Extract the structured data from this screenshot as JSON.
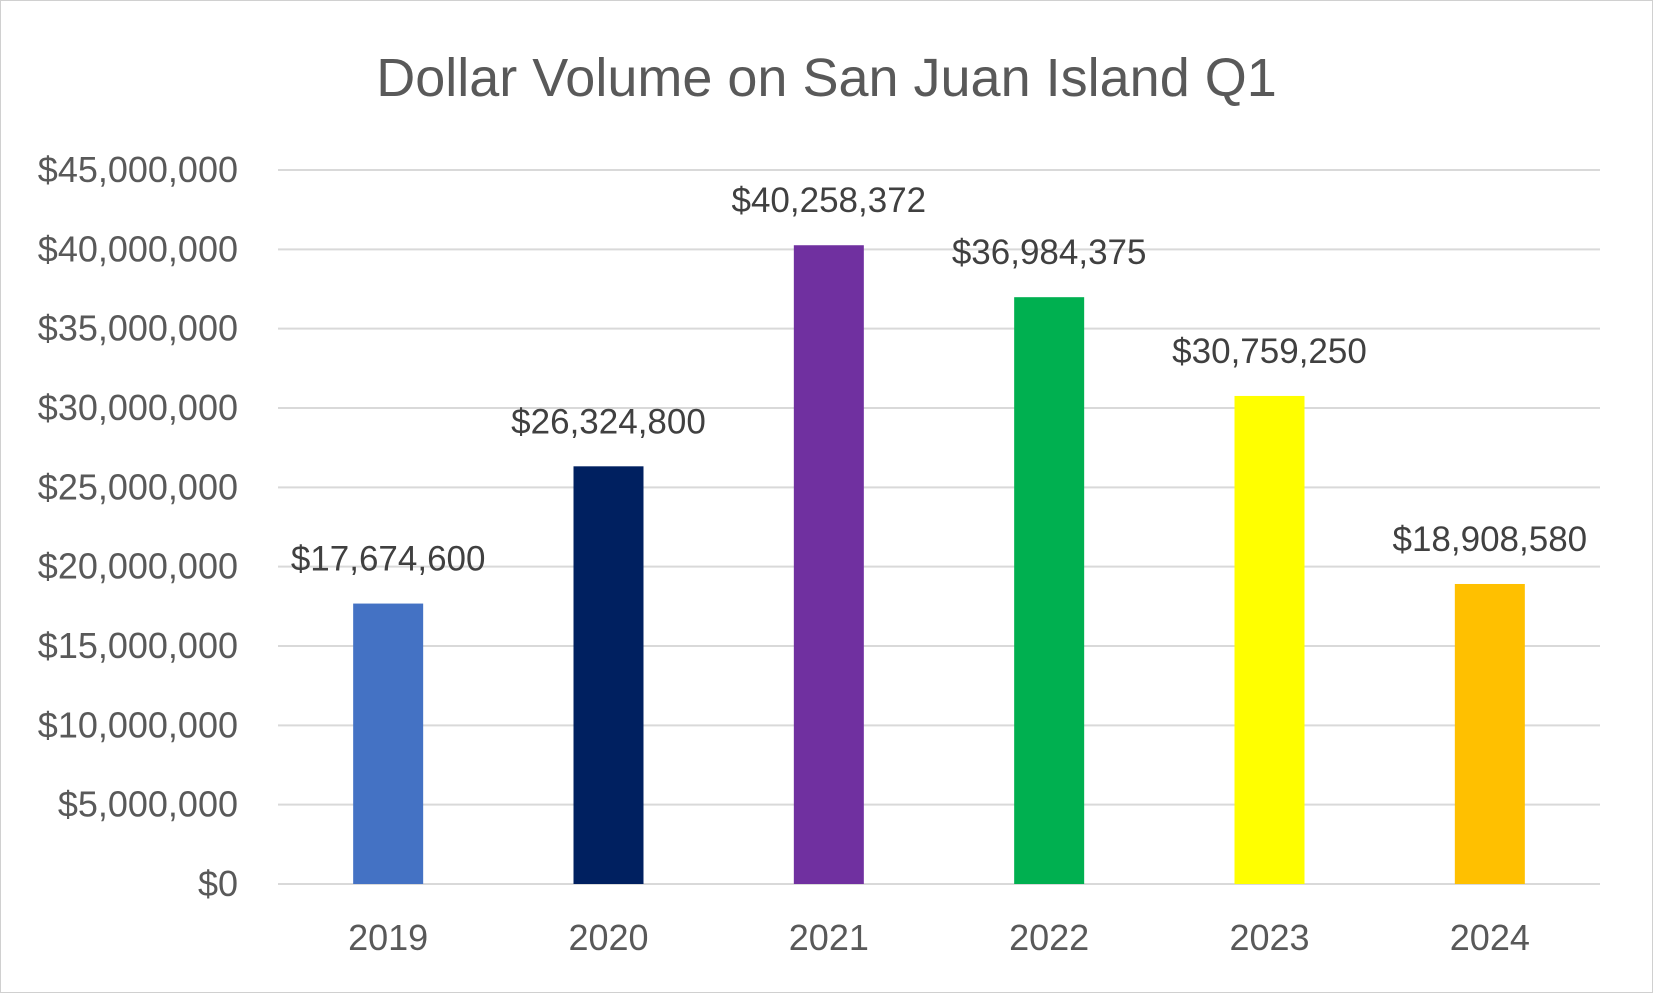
{
  "chart_data": {
    "type": "bar",
    "title": "Dollar Volume on San Juan Island Q1",
    "xlabel": "",
    "ylabel": "",
    "categories": [
      "2019",
      "2020",
      "2021",
      "2022",
      "2023",
      "2024"
    ],
    "values": [
      17674600,
      26324800,
      40258372,
      36984375,
      30759250,
      18908580
    ],
    "data_labels": [
      "$17,674,600",
      "$26,324,800",
      "$40,258,372",
      "$36,984,375",
      "$30,759,250",
      "$18,908,580"
    ],
    "bar_colors": [
      "#4472C4",
      "#002060",
      "#7030A0",
      "#00B050",
      "#FFFF00",
      "#FFC000"
    ],
    "ylim": [
      0,
      45000000
    ],
    "yticks": [
      0,
      5000000,
      10000000,
      15000000,
      20000000,
      25000000,
      30000000,
      35000000,
      40000000,
      45000000
    ],
    "ytick_labels": [
      "$0",
      "$5,000,000",
      "$10,000,000",
      "$15,000,000",
      "$20,000,000",
      "$25,000,000",
      "$30,000,000",
      "$35,000,000",
      "$40,000,000",
      "$45,000,000"
    ],
    "grid": true,
    "legend": "none",
    "gridline_color": "#D9D9D9"
  }
}
